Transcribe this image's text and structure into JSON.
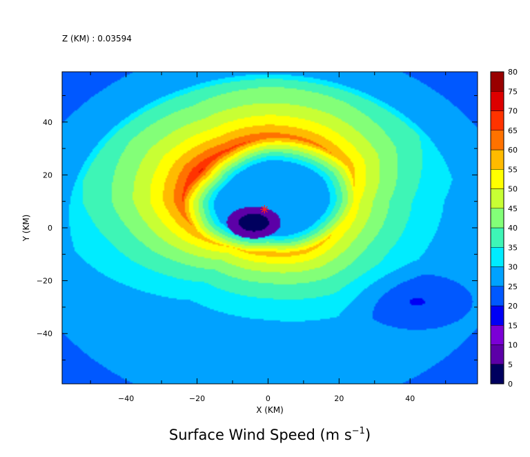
{
  "chart_data": {
    "type": "heatmap",
    "level_label": "Z (KM) : 0.03594",
    "title": "Surface Wind Speed (m s",
    "title_exponent": "−1",
    "title_close": ")",
    "xlabel": "X (KM)",
    "ylabel": "Y (KM)",
    "xlim": [
      -58,
      59
    ],
    "ylim": [
      -59,
      59
    ],
    "x_ticks": [
      -40,
      -20,
      0,
      20,
      40
    ],
    "y_ticks": [
      -40,
      -20,
      0,
      20,
      40
    ],
    "colorbar": {
      "min": 0,
      "max": 80,
      "step": 5,
      "tick_labels": [
        "0",
        "5",
        "10",
        "15",
        "20",
        "25",
        "30",
        "35",
        "40",
        "45",
        "50",
        "55",
        "60",
        "65",
        "70",
        "75",
        "80"
      ],
      "colors": [
        "#00005e",
        "#5c00a7",
        "#7b00d6",
        "#0000f5",
        "#0058ff",
        "#00a2ff",
        "#00ecff",
        "#3ef5b6",
        "#83ff78",
        "#c8ff34",
        "#ffff00",
        "#ffbb00",
        "#ff7200",
        "#ff3300",
        "#dd0000",
        "#990000"
      ]
    },
    "background_speed": 28,
    "field": {
      "center": [
        0,
        10
      ],
      "rmw_ring": [
        [
          0,
          24
        ],
        [
          30,
          26
        ],
        [
          60,
          25
        ],
        [
          90,
          24
        ],
        [
          120,
          22
        ],
        [
          150,
          22
        ],
        [
          180,
          24
        ],
        [
          210,
          23
        ],
        [
          240,
          20
        ],
        [
          270,
          19
        ],
        [
          300,
          21
        ],
        [
          330,
          22
        ]
      ],
      "peak_ring": [
        [
          0,
          50
        ],
        [
          30,
          55
        ],
        [
          60,
          59
        ],
        [
          90,
          61
        ],
        [
          120,
          64
        ],
        [
          150,
          68
        ],
        [
          180,
          62
        ],
        [
          210,
          56
        ],
        [
          240,
          52
        ],
        [
          270,
          56
        ],
        [
          300,
          55
        ],
        [
          330,
          52
        ]
      ]
    },
    "storm_center_marker": [
      -1,
      7
    ]
  }
}
